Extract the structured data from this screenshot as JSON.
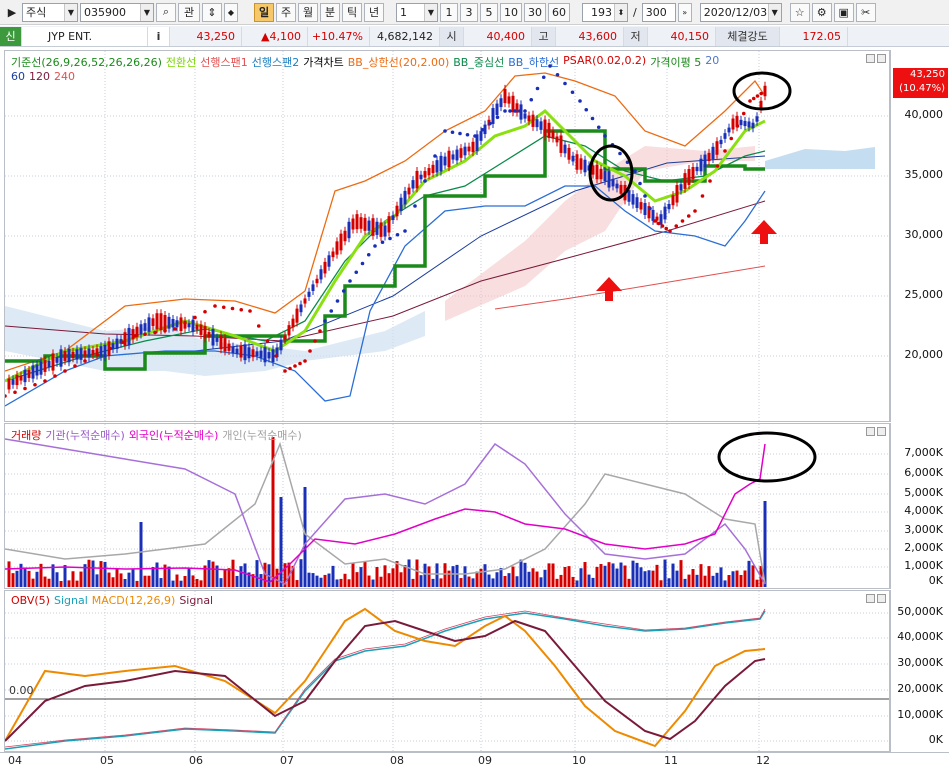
{
  "toolbar": {
    "market": "주식",
    "code": "035900",
    "btn_search": "⌕",
    "btn_gwan": "관",
    "periods": [
      "일",
      "주",
      "월",
      "분",
      "틱",
      "년"
    ],
    "active_period": "일",
    "interval_value": "1",
    "interval_buttons": [
      "1",
      "3",
      "5",
      "10",
      "30",
      "60"
    ],
    "count_value": "193",
    "count_total": "300",
    "date_value": "2020/12/03"
  },
  "info": {
    "badge": "신",
    "name": "JYP ENT.",
    "info_icon": "i",
    "price": "43,250",
    "change": "▲4,100",
    "rate": "+10.47%",
    "volume": "4,682,142",
    "open_label": "시",
    "open": "40,400",
    "high_label": "고",
    "high": "43,600",
    "low_label": "저",
    "low": "40,150",
    "strength_label": "체결강도",
    "strength": "172.05"
  },
  "price_panel": {
    "legend": [
      {
        "text": "기준선(26,9,26,52,26,26,26)",
        "color": "#1a8a1a"
      },
      {
        "text": "전환선",
        "color": "#7ad600"
      },
      {
        "text": "선행스팬1",
        "color": "#e05050"
      },
      {
        "text": "선행스팬2",
        "color": "#1a7fc2"
      },
      {
        "text": "가격차트",
        "color": "#000000"
      },
      {
        "text": "BB_상한선(20,2.00)",
        "color": "#ee6a10"
      },
      {
        "text": "BB_중심선",
        "color": "#0a8a4a"
      },
      {
        "text": "BB_하한선",
        "color": "#2a6ed6"
      },
      {
        "text": "PSAR(0.02,0.2)",
        "color": "#d40000"
      },
      {
        "text": "가격이평 5",
        "color": "#1a8a1a"
      },
      {
        "text": "20",
        "color": "#4d78c8"
      }
    ],
    "legend2": [
      {
        "text": "60",
        "color": "#1a3d9c"
      },
      {
        "text": "120",
        "color": "#7a1a3a"
      },
      {
        "text": "240",
        "color": "#e05050"
      }
    ],
    "last_price": "43,250",
    "last_rate": "(10.47%)",
    "yticks": [
      "40,000",
      "35,000",
      "30,000",
      "25,000",
      "20,000"
    ]
  },
  "volume_panel": {
    "legend": [
      {
        "text": "거래량",
        "color": "#d40000"
      },
      {
        "text": "기관(누적순매수)",
        "color": "#9a5ac8"
      },
      {
        "text": "외국인(누적순매수)",
        "color": "#e000c8"
      },
      {
        "text": "개인(누적순매수)",
        "color": "#a0a0a0"
      }
    ],
    "yticks": [
      "7,000K",
      "6,000K",
      "5,000K",
      "4,000K",
      "3,000K",
      "2,000K",
      "1,000K",
      "0K"
    ]
  },
  "obv_panel": {
    "legend": [
      {
        "text": "OBV(5)",
        "color": "#d40000"
      },
      {
        "text": "Signal",
        "color": "#1aa0b8"
      },
      {
        "text": "MACD(12,26,9)",
        "color": "#ee8a00"
      },
      {
        "text": "Signal",
        "color": "#7a1a3a"
      }
    ],
    "zero_label": "0.00",
    "yticks": [
      "50,000K",
      "40,000K",
      "30,000K",
      "20,000K",
      "10,000K",
      "0K"
    ]
  },
  "xaxis": [
    "04",
    "05",
    "06",
    "07",
    "08",
    "09",
    "10",
    "11",
    "12"
  ],
  "icons": [
    "star-icon",
    "gear-icon",
    "save-icon",
    "tools-icon"
  ]
}
